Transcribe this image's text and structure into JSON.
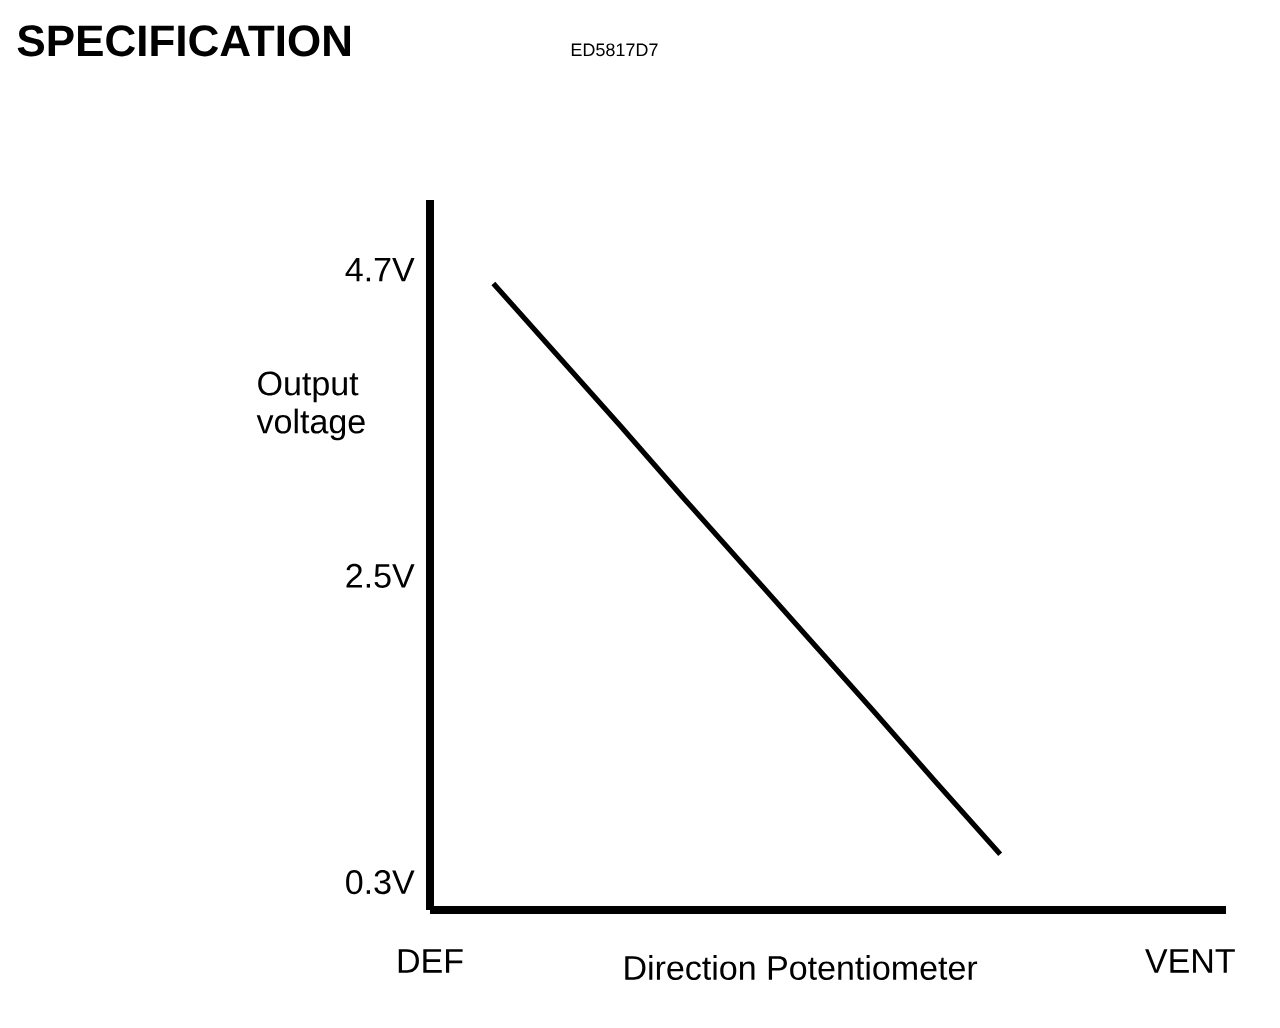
{
  "chart_data": {
    "type": "line",
    "title": "SPECIFICATION",
    "subtitle": "ED5817D7",
    "xlabel": "Direction Potentiometer",
    "ylabel": "Output voltage",
    "categories": [
      "DEF",
      null,
      null,
      null,
      null,
      null,
      null,
      null,
      null,
      null,
      null,
      null,
      "VENT"
    ],
    "series": [
      {
        "color": "#000000",
        "values": [
          null,
          4.6,
          4.09,
          3.58,
          3.06,
          2.55,
          2.04,
          1.53,
          1.01,
          0.5,
          null,
          null,
          null
        ]
      }
    ],
    "ylim": [
      0.1,
      5.2
    ],
    "yticks": [
      {
        "value": 0.3,
        "label": "0.3V"
      },
      {
        "value": 2.5,
        "label": "2.5V"
      },
      {
        "value": 4.7,
        "label": "4.7V"
      }
    ],
    "marker": "none",
    "line_style": "solid"
  }
}
